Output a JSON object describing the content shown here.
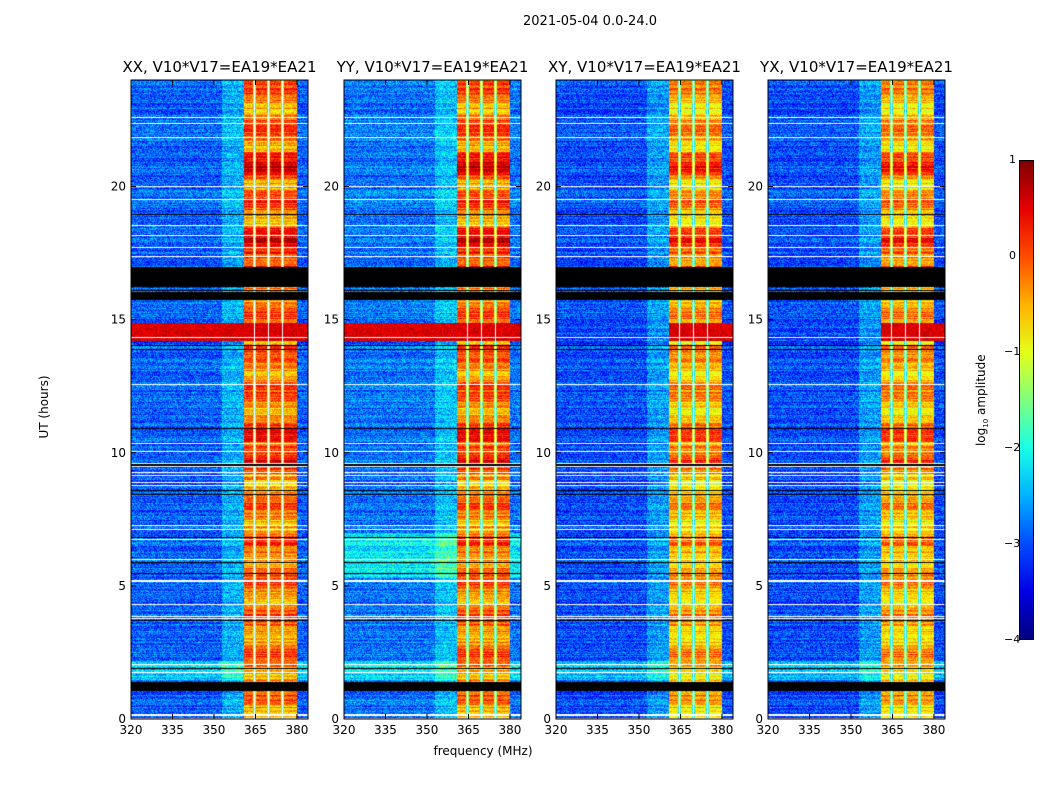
{
  "suptitle": "2021-05-04 0.0-24.0",
  "chart_data": {
    "type": "heatmap",
    "title": "2021-05-04 0.0-24.0",
    "xlabel": "frequency (MHz)",
    "ylabel": "UT (hours)",
    "xlim": [
      320,
      384
    ],
    "ylim": [
      0,
      24
    ],
    "xticks": [
      320,
      335,
      350,
      365,
      380
    ],
    "yticks": [
      0,
      5,
      10,
      15,
      20
    ],
    "panels": [
      {
        "title": "XX, V10*V17=EA19*EA21",
        "rfi_level": -0.2,
        "background_level": -2.9
      },
      {
        "title": "YY, V10*V17=EA19*EA21",
        "rfi_level": -0.2,
        "background_level": -2.8
      },
      {
        "title": "XY, V10*V17=EA19*EA21",
        "rfi_level": -0.5,
        "background_level": -3.0
      },
      {
        "title": "YX, V10*V17=EA19*EA21",
        "rfi_level": -0.5,
        "background_level": -3.0
      }
    ],
    "rfi_band_mhz": [
      360.5,
      380
    ],
    "rfi_gaps_mhz": [
      364.5,
      369.5,
      374.5
    ],
    "flagged_hours": [
      [
        16.3,
        16.95
      ],
      [
        15.75,
        16.05
      ],
      [
        1.1,
        1.4
      ]
    ],
    "bright_hours": [
      [
        14.2,
        14.9
      ]
    ],
    "colorbar": {
      "label": "log10 amplitude",
      "label_main": "log",
      "label_sub": "10",
      "label_rest": " amplitude",
      "colormap": "jet",
      "range": [
        -4,
        1
      ],
      "ticks": [
        "1",
        "0",
        "−1",
        "−2",
        "−3",
        "−4"
      ]
    }
  }
}
